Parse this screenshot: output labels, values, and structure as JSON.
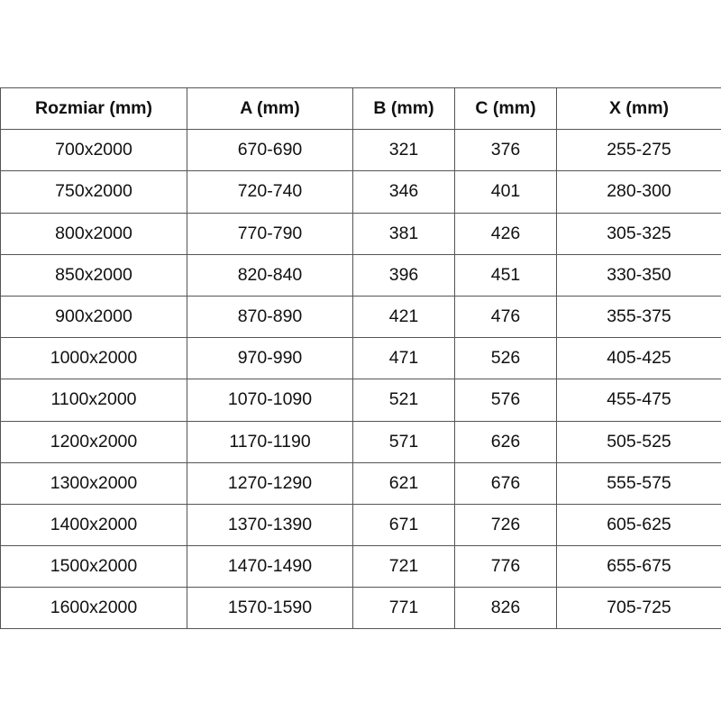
{
  "table": {
    "headers": [
      "Rozmiar (mm)",
      "A (mm)",
      "B (mm)",
      "C (mm)",
      "X (mm)"
    ],
    "rows": [
      [
        "700x2000",
        "670-690",
        "321",
        "376",
        "255-275"
      ],
      [
        "750x2000",
        "720-740",
        "346",
        "401",
        "280-300"
      ],
      [
        "800x2000",
        "770-790",
        "381",
        "426",
        "305-325"
      ],
      [
        "850x2000",
        "820-840",
        "396",
        "451",
        "330-350"
      ],
      [
        "900x2000",
        "870-890",
        "421",
        "476",
        "355-375"
      ],
      [
        "1000x2000",
        "970-990",
        "471",
        "526",
        "405-425"
      ],
      [
        "1100x2000",
        "1070-1090",
        "521",
        "576",
        "455-475"
      ],
      [
        "1200x2000",
        "1170-1190",
        "571",
        "626",
        "505-525"
      ],
      [
        "1300x2000",
        "1270-1290",
        "621",
        "676",
        "555-575"
      ],
      [
        "1400x2000",
        "1370-1390",
        "671",
        "726",
        "605-625"
      ],
      [
        "1500x2000",
        "1470-1490",
        "721",
        "776",
        "655-675"
      ],
      [
        "1600x2000",
        "1570-1590",
        "771",
        "826",
        "705-725"
      ]
    ]
  }
}
